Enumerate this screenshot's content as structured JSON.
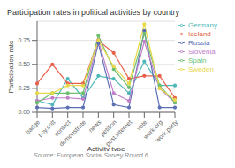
{
  "chart_data": {
    "type": "line",
    "title": "Participation rates in political activities by country",
    "xlabel": "Activity type",
    "ylabel": "Participation rate",
    "annotations": [
      "Source: European Social Survey Round 6"
    ],
    "categories": [
      "badge",
      "boy.cott",
      "contact",
      "demonstrate",
      "news",
      "petition",
      "post.internet",
      "vote",
      "work.org",
      "work.party"
    ],
    "series": [
      {
        "name": "Germany",
        "color": "#4db8b8",
        "values": [
          0.12,
          0.08,
          0.35,
          0.15,
          0.38,
          0.35,
          0.2,
          0.53,
          0.28,
          0.28
        ]
      },
      {
        "name": "Iceland",
        "color": "#e8604c",
        "values": [
          0.3,
          0.5,
          0.3,
          0.3,
          0.75,
          0.62,
          0.35,
          0.38,
          0.38,
          0.15
        ]
      },
      {
        "name": "Russia",
        "color": "#5b6fb5",
        "values": [
          0.05,
          0.04,
          0.05,
          0.05,
          0.72,
          0.08,
          0.05,
          0.85,
          0.05,
          0.05
        ]
      },
      {
        "name": "Slovenia",
        "color": "#c07ec8",
        "values": [
          0.12,
          0.15,
          0.15,
          0.14,
          0.75,
          0.2,
          0.12,
          0.74,
          0.25,
          0.1
        ]
      },
      {
        "name": "Spain",
        "color": "#6dbf6d",
        "values": [
          0.1,
          0.2,
          0.2,
          0.2,
          0.8,
          0.45,
          0.26,
          0.82,
          0.28,
          0.1
        ]
      },
      {
        "name": "Sweden",
        "color": "#e8d84c",
        "values": [
          0.2,
          0.2,
          0.28,
          0.28,
          0.75,
          0.48,
          0.3,
          0.92,
          0.25,
          0.13
        ]
      }
    ],
    "ylim": [
      0.0,
      0.95
    ],
    "yticks": [
      {
        "value": 0,
        "label": "0.00"
      },
      0.25,
      {
        "value": 0.5,
        "label": "0.50"
      },
      0.75
    ],
    "grid": true,
    "legend": "right",
    "marker": "circle"
  }
}
